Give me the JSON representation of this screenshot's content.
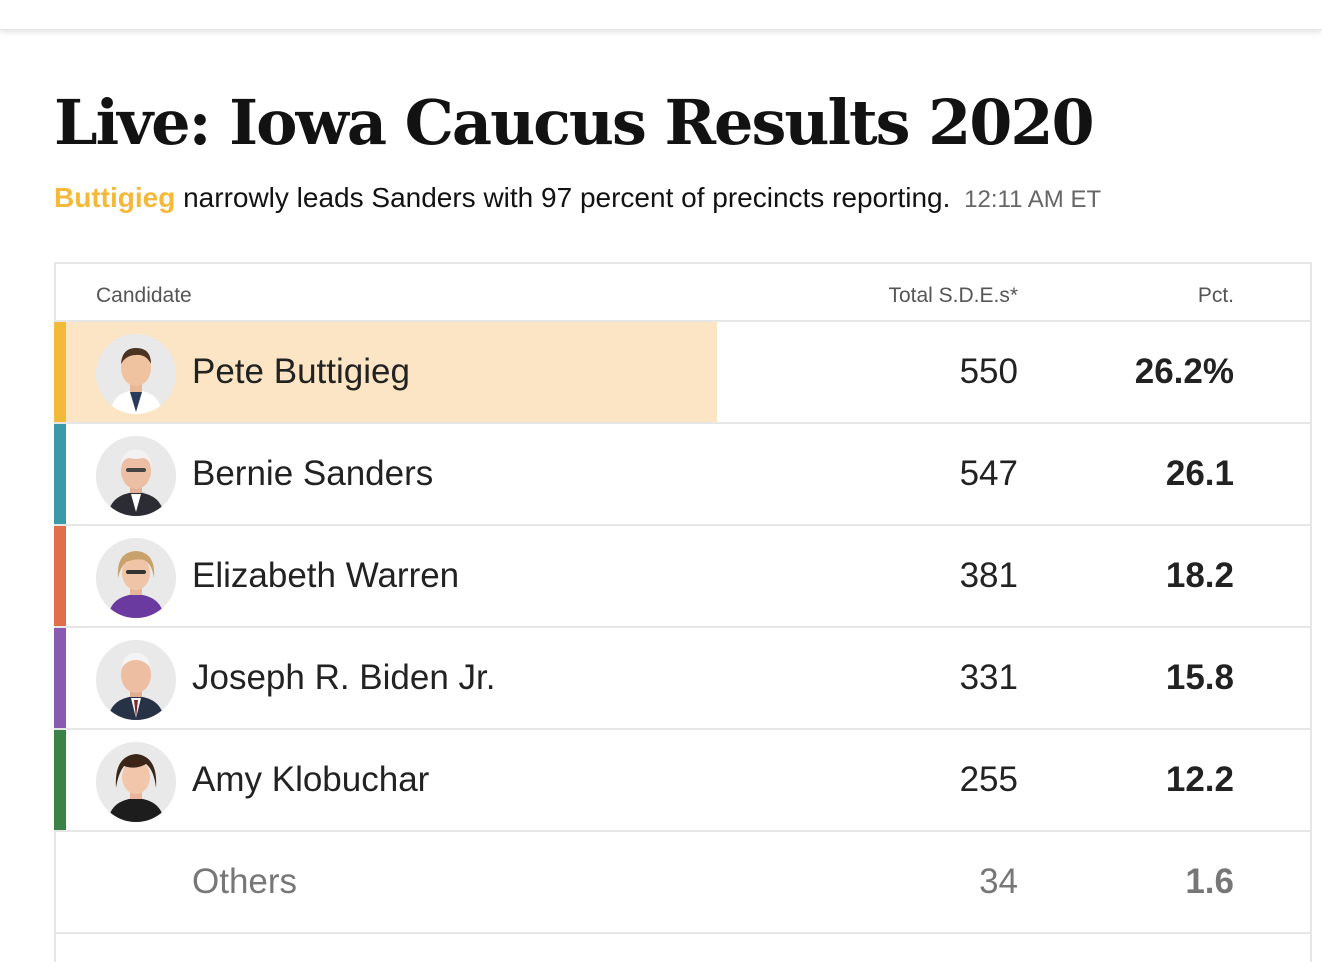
{
  "headline": "Live: Iowa Caucus Results 2020",
  "summary": {
    "leader": "Buttigieg",
    "text": "narrowly leads Sanders with 97 percent of precincts reporting.",
    "time": "12:11 AM ET"
  },
  "table": {
    "headers": {
      "candidate": "Candidate",
      "votes": "Total S.D.E.s*",
      "pct": "Pct."
    },
    "rows": [
      {
        "name": "Pete Buttigieg",
        "votes": "550",
        "pct": "26.2%",
        "color": "#f4b93a",
        "icon": "pete-buttigieg-avatar-icon"
      },
      {
        "name": "Bernie Sanders",
        "votes": "547",
        "pct": "26.1",
        "color": "#3a9aa8",
        "icon": "bernie-sanders-avatar-icon"
      },
      {
        "name": "Elizabeth Warren",
        "votes": "381",
        "pct": "18.2",
        "color": "#e0704b",
        "icon": "elizabeth-warren-avatar-icon"
      },
      {
        "name": "Joseph R. Biden Jr.",
        "votes": "331",
        "pct": "15.8",
        "color": "#8a5ab0",
        "icon": "joseph-biden-avatar-icon"
      },
      {
        "name": "Amy Klobuchar",
        "votes": "255",
        "pct": "12.2",
        "color": "#3b8246",
        "icon": "amy-klobuchar-avatar-icon"
      },
      {
        "name": "Others",
        "votes": "34",
        "pct": "1.6"
      }
    ]
  },
  "colors": {
    "leader_highlight": "#fce5c4",
    "leader_text": "#f4b93a"
  }
}
